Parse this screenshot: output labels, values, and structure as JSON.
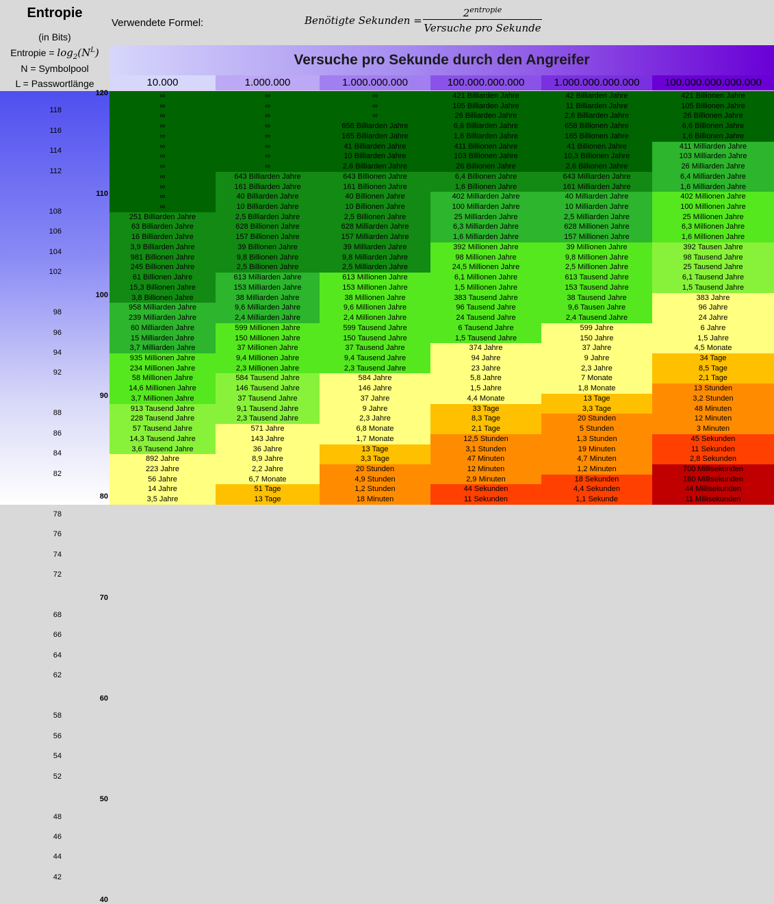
{
  "sidebar": {
    "title": "Entropie",
    "bits": "(in Bits)",
    "formula_label": "Entropie =",
    "formula_math": "log",
    "formula_sub": "2",
    "formula_arg": "(N",
    "formula_sup": "L",
    "formula_close": ")",
    "n_def": "N = Symbolpool",
    "l_def": "L = Passwortlänge"
  },
  "formula": {
    "label": "Verwendete Formel:",
    "lhs": "Benötigte Sekunden =",
    "num_base": "2",
    "num_exp": "entropie",
    "denominator": "Versuche pro Sekunde"
  },
  "header": {
    "title": "Versuche pro Sekunde durch den Angreifer",
    "columns": [
      "10.000",
      "1.000.000",
      "1.000.000.000",
      "100.000.000.000",
      "1.000.000.000.000",
      "100.000.000.000.000"
    ],
    "column_colors": [
      "#d7d7fb",
      "#bca8f5",
      "#a27ff0",
      "#8a52e8",
      "#7a30e0",
      "#6a00d6"
    ]
  },
  "y_axis": {
    "major": [
      "120",
      "110",
      "100",
      "90",
      "80",
      "70",
      "60",
      "50",
      "40"
    ],
    "minor": [
      "118",
      "116",
      "114",
      "112",
      "108",
      "106",
      "104",
      "102",
      "98",
      "96",
      "94",
      "92",
      "88",
      "86",
      "84",
      "82",
      "78",
      "76",
      "74",
      "72",
      "68",
      "66",
      "64",
      "62",
      "58",
      "56",
      "54",
      "52",
      "48",
      "46",
      "44",
      "42"
    ]
  },
  "colors": {
    "D": "#006400",
    "C": "#138a13",
    "B": "#2db52d",
    "A": "#55e81f",
    "L": "#88f23a",
    "Y": "#ffff80",
    "O": "#ffc000",
    "P": "#ff8c00",
    "R": "#ff4000",
    "Q": "#c00000"
  },
  "rows": [
    {
      "c": [
        "∞",
        "∞",
        "∞",
        "421 Billiarden Jahre",
        "42 Billiarden Jahre",
        "421 Billionen Jahre"
      ],
      "k": "DDDDDD"
    },
    {
      "c": [
        "∞",
        "∞",
        "∞",
        "105 Billiarden Jahre",
        "11 Billiarden Jahre",
        "105 Billionen Jahre"
      ],
      "k": "DDDDDD"
    },
    {
      "c": [
        "∞",
        "∞",
        "∞",
        "26 Billiarden Jahre",
        "2,6 Billiarden Jahre",
        "26 Billionen Jahre"
      ],
      "k": "DDDDDD"
    },
    {
      "c": [
        "∞",
        "∞",
        "658 Billiarden Jahre",
        "6,6 Billiarden Jahre",
        "658 Billionen Jahre",
        "6,6 Billionen Jahre"
      ],
      "k": "DDDDDD"
    },
    {
      "c": [
        "∞",
        "∞",
        "165 Billiarden Jahre",
        "1,6 Billiarden Jahre",
        "165 Billionen Jahre",
        "1,6 Billionen Jahre"
      ],
      "k": "DDDDDD"
    },
    {
      "c": [
        "∞",
        "∞",
        "41 Billiarden Jahre",
        "411 Billionen Jahre",
        "41 Billionen Jahre",
        "411 Milliarden Jahre"
      ],
      "k": "DDDDDB"
    },
    {
      "c": [
        "∞",
        "∞",
        "10 Billiarden Jahre",
        "103 Billionen Jahre",
        "10,3 Billionen Jahre",
        "103 Milliarden Jahre"
      ],
      "k": "DDDDDB"
    },
    {
      "c": [
        "∞",
        "∞",
        "2,6 Billiarden Jahre",
        "26 Billionen Jahre",
        "2,6 Billionen Jahre",
        "26 Milliarden Jahre"
      ],
      "k": "DDDDDB"
    },
    {
      "c": [
        "∞",
        "643 Billiarden Jahre",
        "643 Billionen Jahre",
        "6,4 Billionen Jahre",
        "643 Milliarden Jahre",
        "6,4 Milliarden Jahre"
      ],
      "k": "DCCCCB"
    },
    {
      "c": [
        "∞",
        "161 Billiarden Jahre",
        "161 Billionen Jahre",
        "1,6 Billionen Jahre",
        "161 Milliarden Jahre",
        "1,6 Milliarden Jahre"
      ],
      "k": "DCCCCB"
    },
    {
      "c": [
        "∞",
        "40 Billiarden Jahre",
        "40 Billionen Jahre",
        "402 Milliarden Jahre",
        "40 Milliarden Jahre",
        "402 Millionen Jahre"
      ],
      "k": "DCCBBA"
    },
    {
      "c": [
        "∞",
        "10 Billiarden Jahre",
        "10 Billionen Jahre",
        "100 Milliarden Jahre",
        "10 Milliarden Jahre",
        "100 Millionen Jahre"
      ],
      "k": "DCCBBA"
    },
    {
      "c": [
        "251 Billiarden Jahre",
        "2,5 Billiarden Jahre",
        "2,5 Billionen Jahre",
        "25 Milliarden Jahre",
        "2,5 Milliarden Jahre",
        "25 Millionen Jahre"
      ],
      "k": "CCCBBA"
    },
    {
      "c": [
        "63 Billiarden Jahre",
        "628 Billionen Jahre",
        "628 Milliarden Jahre",
        "6,3 Milliarden Jahre",
        "628 Millionen Jahre",
        "6,3 Millionen Jahre"
      ],
      "k": "CCCBBA"
    },
    {
      "c": [
        "16 Billiarden Jahre",
        "157 Billionen Jahre",
        "157 Milliarden Jahre",
        "1,6 Milliarden Jahre",
        "157 Millionen Jahre",
        "1,6 Millionen Jahre"
      ],
      "k": "CCCBBA"
    },
    {
      "c": [
        "3,9 Billiarden Jahre",
        "39 Billionen Jahre",
        "39 Milliarden Jahre",
        "392 Millionen Jahre",
        "39 Millionen Jahre",
        "392 Tausen Jahre"
      ],
      "k": "CCCAAL"
    },
    {
      "c": [
        "981 Billionen Jahre",
        "9,8 Billionen Jahre",
        "9,8 Milliarden Jahre",
        "98 Millionen Jahre",
        "9,8 Millionen Jahre",
        "98 Tausend Jahre"
      ],
      "k": "CCCAAL"
    },
    {
      "c": [
        "245 Billionen Jahre",
        "2,5 Billionen Jahre",
        "2,5 Milliarden Jahre",
        "24,5 Millionen Jahre",
        "2,5 Millionen Jahre",
        "25 Tausend Jahre"
      ],
      "k": "CCCAAL"
    },
    {
      "c": [
        "61 Billionen Jahre",
        "613 Milliarden Jahre",
        "613 Millionen Jahre",
        "6,1 Millionen Jahre",
        "613 Tausend Jahre",
        "6,1 Tausend Jahre"
      ],
      "k": "CBAAAL"
    },
    {
      "c": [
        "15,3 Billionen Jahre",
        "153 Milliarden Jahre",
        "153 Millionen Jahre",
        "1,5 Millionen Jahre",
        "153 Tausend Jahre",
        "1,5 Tausend Jahre"
      ],
      "k": "CBAAAL"
    },
    {
      "c": [
        "3,8 Billionen Jahre",
        "38 Milliarden Jahre",
        "38 Millionen Jahre",
        "383 Tausend Jahre",
        "38 Tausend Jahre",
        "383 Jahre"
      ],
      "k": "CBAAAY"
    },
    {
      "c": [
        "958 Milliarden Jahre",
        "9,6 Milliarden Jahre",
        "9,6 Millionen Jahre",
        "96 Tausend Jahre",
        "9,6 Tausen Jahre",
        "96 Jahre"
      ],
      "k": "BBAAAY"
    },
    {
      "c": [
        "239 Milliarden Jahre",
        "2,4 Milliarden Jahre",
        "2,4 Millionen Jahre",
        "24 Tausend Jahre",
        "2,4 Tausend Jahre",
        "24 Jahre"
      ],
      "k": "BBAAAY"
    },
    {
      "c": [
        "60 Milliarden Jahre",
        "599 Millionen Jahre",
        "599 Tausend Jahre",
        "6 Tausend Jahre",
        "599 Jahre",
        "6 Jahre"
      ],
      "k": "BAAAYY"
    },
    {
      "c": [
        "15 Milliarden Jahre",
        "150 Millionen Jahre",
        "150 Tausend Jahre",
        "1,5 Tausend Jahre",
        "150 Jahre",
        "1,5 Jahre"
      ],
      "k": "BAAAYY"
    },
    {
      "c": [
        "3,7 Milliarden Jahre",
        "37 Millionen Jahre",
        "37 Tausend Jahre",
        "374 Jahre",
        "37 Jahre",
        "4,5 Monate"
      ],
      "k": "BAAYYY"
    },
    {
      "c": [
        "935 Millionen Jahre",
        "9,4 Millionen Jahre",
        "9,4 Tausend Jahre",
        "94 Jahre",
        "9 Jahre",
        "34 Tage"
      ],
      "k": "AAAYYO"
    },
    {
      "c": [
        "234 Millionen Jahre",
        "2,3 Millionen Jahre",
        "2,3 Tausend Jahre",
        "23 Jahre",
        "2,3 Jahre",
        "8,5 Tage"
      ],
      "k": "AAAYYO"
    },
    {
      "c": [
        "58 Millionen Jahre",
        "584 Tausend Jahre",
        "584 Jahre",
        "5,8 Jahre",
        "7 Monate",
        "2,1 Tage"
      ],
      "k": "ALYYYO"
    },
    {
      "c": [
        "14,6 Millionen Jahre",
        "146 Tausend Jahre",
        "146 Jahre",
        "1,5 Jahre",
        "1,8 Monate",
        "13 Stunden"
      ],
      "k": "ALYYYP"
    },
    {
      "c": [
        "3,7 Millionen Jahre",
        "37 Tausend Jahre",
        "37 Jahre",
        "4,4 Monate",
        "13 Tage",
        "3,2 Stunden"
      ],
      "k": "ALYYOP"
    },
    {
      "c": [
        "913 Tausend Jahre",
        "9,1 Tausend Jahre",
        "9 Jahre",
        "33 Tage",
        "3,3 Tage",
        "48 Minuten"
      ],
      "k": "LLYOOP"
    },
    {
      "c": [
        "228 Tausend Jahre",
        "2,3 Tausend Jahre",
        "2,3 Jahre",
        "8,3 Tage",
        "20 Stunden",
        "12 Minuten"
      ],
      "k": "LLYOPP"
    },
    {
      "c": [
        "57 Tausend Jahre",
        "571 Jahre",
        "6,8 Monate",
        "2,1 Tage",
        "5 Stunden",
        "3 Minuten"
      ],
      "k": "LYYOPP"
    },
    {
      "c": [
        "14,3 Tausend Jahre",
        "143 Jahre",
        "1,7 Monate",
        "12,5 Stunden",
        "1,3 Stunden",
        "45 Sekunden"
      ],
      "k": "LYYPPR"
    },
    {
      "c": [
        "3,6 Tausend Jahre",
        "36 Jahre",
        "13 Tage",
        "3,1 Stunden",
        "19 Minuten",
        "11 Sekunden"
      ],
      "k": "LYOPPR"
    },
    {
      "c": [
        "892 Jahre",
        "8,9 Jahre",
        "3,3 Tage",
        "47 Minuten",
        "4,7 Minuten",
        "2,8 Sekunden"
      ],
      "k": "YYOPPR"
    },
    {
      "c": [
        "223 Jahre",
        "2,2 Jahre",
        "20 Stunden",
        "12 Minuten",
        "1,2 Minuten",
        "700 Millisekunden"
      ],
      "k": "YYPPPQ"
    },
    {
      "c": [
        "56 Jahre",
        "6,7 Monate",
        "4,9 Stunden",
        "2,9 Minuten",
        "18 Sekunden",
        "180 Millisekunden"
      ],
      "k": "YYPPRQ"
    },
    {
      "c": [
        "14 Jahre",
        "51 Tage",
        "1,2 Stunden",
        "44 Sekunden",
        "4,4 Sekunden",
        "44 Millisekunden"
      ],
      "k": "YOPRRQ"
    },
    {
      "c": [
        "3,5 Jahre",
        "13 Tage",
        "18 Minuten",
        "11 Sekunden",
        "1,1 Sekunde",
        "11 Millisekunden"
      ],
      "k": "YOPRRQ"
    }
  ]
}
